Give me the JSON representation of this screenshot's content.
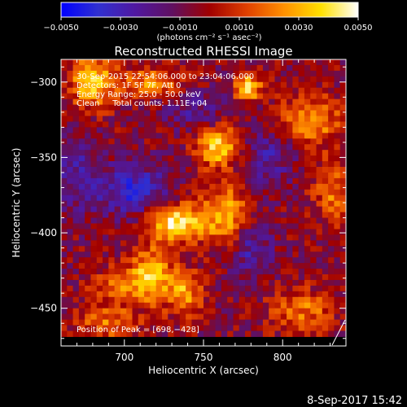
{
  "colorbar": {
    "ticks": [
      {
        "value": -0.005,
        "label": "−0.0050"
      },
      {
        "value": -0.003,
        "label": "−0.0030"
      },
      {
        "value": -0.001,
        "label": "−0.0010"
      },
      {
        "value": 0.001,
        "label": "0.0010"
      },
      {
        "value": 0.003,
        "label": "0.0030"
      },
      {
        "value": 0.005,
        "label": "0.0050"
      }
    ],
    "range": [
      -0.005,
      0.005
    ],
    "unit_label": "(photons cm⁻² s⁻¹ asec⁻²)",
    "colors": [
      "#0000ff",
      "#3030d0",
      "#5018a0",
      "#601060",
      "#a00000",
      "#e04000",
      "#ff9000",
      "#ffe000",
      "#ffffff"
    ]
  },
  "chart_data": {
    "type": "heatmap",
    "title": "Reconstructed RHESSI Image",
    "xlabel": "Heliocentric X (arcsec)",
    "ylabel": "Heliocentric Y (arcsec)",
    "xlim": [
      660,
      840
    ],
    "ylim": [
      -475,
      -285
    ],
    "x_ticks": [
      {
        "value": 700,
        "label": "700"
      },
      {
        "value": 750,
        "label": "750"
      },
      {
        "value": 800,
        "label": "800"
      }
    ],
    "y_ticks": [
      {
        "value": -300,
        "label": "−300"
      },
      {
        "value": -350,
        "label": "−350"
      },
      {
        "value": -400,
        "label": "−400"
      },
      {
        "value": -450,
        "label": "−450"
      }
    ],
    "annotations": {
      "time": "30-Sep-2015 22:54:06.000 to 23:04:06.000",
      "detectors": "Detectors: 1F 5F 7F, Att 0",
      "energy": "Energy Range: 25.0 - 50.0 keV",
      "clean": "Clean     Total counts: 1.11E+04",
      "peak": "Position of Peak = [698,−428]"
    },
    "peak_position": [
      698,
      -428
    ],
    "sources": [
      {
        "x": 760,
        "y": -343,
        "amp": 0.0045,
        "sx": 10,
        "sy": 9
      },
      {
        "x": 733,
        "y": -393,
        "amp": 0.0048,
        "sx": 13,
        "sy": 9
      },
      {
        "x": 765,
        "y": -388,
        "amp": 0.0035,
        "sx": 11,
        "sy": 14
      },
      {
        "x": 717,
        "y": -428,
        "amp": 0.004,
        "sx": 9,
        "sy": 12
      },
      {
        "x": 738,
        "y": -440,
        "amp": 0.0033,
        "sx": 8,
        "sy": 10
      },
      {
        "x": 695,
        "y": -435,
        "amp": 0.0025,
        "sx": 12,
        "sy": 8
      },
      {
        "x": 680,
        "y": -300,
        "amp": 0.004,
        "sx": 10,
        "sy": 12
      },
      {
        "x": 718,
        "y": -300,
        "amp": 0.003,
        "sx": 14,
        "sy": 7
      },
      {
        "x": 778,
        "y": -304,
        "amp": 0.0042,
        "sx": 6,
        "sy": 6
      },
      {
        "x": 818,
        "y": -325,
        "amp": 0.003,
        "sx": 14,
        "sy": 12
      },
      {
        "x": 832,
        "y": -372,
        "amp": 0.0025,
        "sx": 9,
        "sy": 14
      },
      {
        "x": 812,
        "y": -452,
        "amp": 0.0025,
        "sx": 14,
        "sy": 10
      },
      {
        "x": 690,
        "y": -460,
        "amp": 0.0024,
        "sx": 14,
        "sy": 8
      },
      {
        "x": 706,
        "y": -372,
        "amp": -0.003,
        "sx": 16,
        "sy": 12
      },
      {
        "x": 780,
        "y": -410,
        "amp": -0.0022,
        "sx": 9,
        "sy": 14
      },
      {
        "x": 790,
        "y": -350,
        "amp": -0.002,
        "sx": 12,
        "sy": 14
      },
      {
        "x": 745,
        "y": -318,
        "amp": -0.0015,
        "sx": 14,
        "sy": 10
      },
      {
        "x": 670,
        "y": -360,
        "amp": -0.0018,
        "sx": 10,
        "sy": 18
      }
    ]
  },
  "footer": {
    "date": "8-Sep-2017 15:42"
  }
}
